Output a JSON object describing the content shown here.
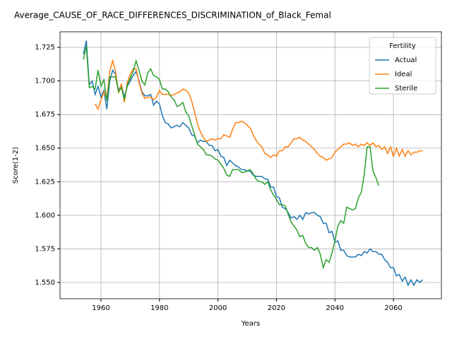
{
  "chart_data": {
    "type": "line",
    "title": "Average_CAUSE_OF_RACE_DIFFERENCES_DISCRIMINATION_of_Black_Femal",
    "x_label": "Years",
    "y_label": "Score(1-2)",
    "legend_title": "Fertility",
    "legend_position": "upper right",
    "grid": true,
    "xlim": [
      1946,
      2076.4
    ],
    "ylim": [
      1.5379,
      1.7366
    ],
    "xticks": [
      1960,
      1980,
      2000,
      2020,
      2040,
      2060
    ],
    "yticks": [
      {
        "value": 1.55,
        "label": "1.550"
      },
      {
        "value": 1.575,
        "label": "1.575"
      },
      {
        "value": 1.6,
        "label": "1.600"
      },
      {
        "value": 1.625,
        "label": "1.625"
      },
      {
        "value": 1.65,
        "label": "1.650"
      },
      {
        "value": 1.675,
        "label": "1.675"
      },
      {
        "value": 1.7,
        "label": "1.700"
      },
      {
        "value": 1.725,
        "label": "1.725"
      }
    ],
    "series": [
      {
        "name": "Actual",
        "color": "#1f77b4",
        "x": [
          1954,
          1955,
          1956,
          1957,
          1958,
          1959,
          1960,
          1961,
          1962,
          1963,
          1964,
          1965,
          1966,
          1967,
          1968,
          1969,
          1970,
          1971,
          1972,
          1973,
          1974,
          1975,
          1976,
          1977,
          1978,
          1979,
          1980,
          1981,
          1982,
          1983,
          1984,
          1985,
          1986,
          1987,
          1988,
          1989,
          1990,
          1991,
          1992,
          1993,
          1994,
          1995,
          1996,
          1997,
          1998,
          1999,
          2000,
          2001,
          2002,
          2003,
          2004,
          2005,
          2006,
          2007,
          2008,
          2009,
          2010,
          2011,
          2012,
          2013,
          2014,
          2015,
          2016,
          2017,
          2018,
          2019,
          2020,
          2021,
          2022,
          2023,
          2024,
          2025,
          2026,
          2027,
          2028,
          2029,
          2030,
          2031,
          2032,
          2033,
          2034,
          2035,
          2036,
          2037,
          2038,
          2039,
          2040,
          2041,
          2042,
          2043,
          2044,
          2045,
          2046,
          2047,
          2048,
          2049,
          2050,
          2051,
          2052,
          2053,
          2054,
          2055,
          2056,
          2057,
          2058,
          2059,
          2060,
          2061,
          2062,
          2063,
          2064,
          2065,
          2066,
          2067,
          2068,
          2069,
          2070
        ],
        "values": [
          1.72,
          1.73,
          1.697,
          1.7,
          1.69,
          1.696,
          1.688,
          1.693,
          1.679,
          1.7,
          1.708,
          1.705,
          1.693,
          1.697,
          1.688,
          1.696,
          1.7,
          1.704,
          1.707,
          1.7,
          1.692,
          1.689,
          1.689,
          1.69,
          1.682,
          1.685,
          1.683,
          1.674,
          1.669,
          1.668,
          1.665,
          1.666,
          1.667,
          1.666,
          1.669,
          1.667,
          1.665,
          1.66,
          1.659,
          1.654,
          1.656,
          1.655,
          1.655,
          1.652,
          1.652,
          1.648,
          1.649,
          1.644,
          1.643,
          1.637,
          1.641,
          1.639,
          1.637,
          1.636,
          1.634,
          1.634,
          1.633,
          1.633,
          1.63,
          1.629,
          1.629,
          1.629,
          1.627,
          1.627,
          1.621,
          1.621,
          1.614,
          1.613,
          1.606,
          1.605,
          1.602,
          1.598,
          1.599,
          1.597,
          1.6,
          1.597,
          1.602,
          1.601,
          1.602,
          1.602,
          1.6,
          1.599,
          1.594,
          1.594,
          1.587,
          1.588,
          1.58,
          1.581,
          1.574,
          1.574,
          1.57,
          1.569,
          1.569,
          1.569,
          1.571,
          1.57,
          1.573,
          1.572,
          1.575,
          1.573,
          1.573,
          1.571,
          1.571,
          1.567,
          1.565,
          1.561,
          1.561,
          1.555,
          1.556,
          1.551,
          1.554,
          1.548,
          1.552,
          1.548,
          1.552,
          1.55,
          1.552
        ]
      },
      {
        "name": "Ideal",
        "color": "#ff7f0e",
        "x": [
          1958,
          1959,
          1960,
          1961,
          1962,
          1963,
          1964,
          1965,
          1966,
          1967,
          1968,
          1969,
          1970,
          1971,
          1972,
          1973,
          1974,
          1975,
          1976,
          1977,
          1978,
          1979,
          1980,
          1981,
          1982,
          1983,
          1984,
          1985,
          1986,
          1987,
          1988,
          1989,
          1990,
          1991,
          1992,
          1993,
          1994,
          1995,
          1996,
          1997,
          1998,
          1999,
          2000,
          2001,
          2002,
          2003,
          2004,
          2005,
          2006,
          2007,
          2008,
          2009,
          2010,
          2011,
          2012,
          2013,
          2014,
          2015,
          2016,
          2017,
          2018,
          2019,
          2020,
          2021,
          2022,
          2023,
          2024,
          2025,
          2026,
          2027,
          2028,
          2029,
          2030,
          2031,
          2032,
          2033,
          2034,
          2035,
          2036,
          2037,
          2038,
          2039,
          2040,
          2041,
          2042,
          2043,
          2044,
          2045,
          2046,
          2047,
          2048,
          2049,
          2050,
          2051,
          2052,
          2053,
          2054,
          2055,
          2056,
          2057,
          2058,
          2059,
          2060,
          2061,
          2062,
          2063,
          2064,
          2065,
          2066,
          2067,
          2068,
          2069,
          2070
        ],
        "values": [
          1.683,
          1.679,
          1.686,
          1.692,
          1.687,
          1.707,
          1.715,
          1.707,
          1.691,
          1.698,
          1.684,
          1.699,
          1.705,
          1.709,
          1.709,
          1.699,
          1.691,
          1.687,
          1.688,
          1.688,
          1.686,
          1.688,
          1.693,
          1.69,
          1.69,
          1.69,
          1.689,
          1.69,
          1.691,
          1.692,
          1.694,
          1.693,
          1.691,
          1.685,
          1.677,
          1.668,
          1.662,
          1.658,
          1.655,
          1.656,
          1.657,
          1.656,
          1.657,
          1.657,
          1.66,
          1.659,
          1.658,
          1.664,
          1.669,
          1.669,
          1.67,
          1.669,
          1.667,
          1.665,
          1.66,
          1.656,
          1.653,
          1.651,
          1.646,
          1.645,
          1.643,
          1.645,
          1.644,
          1.648,
          1.648,
          1.651,
          1.651,
          1.654,
          1.657,
          1.657,
          1.658,
          1.656,
          1.655,
          1.653,
          1.651,
          1.649,
          1.646,
          1.644,
          1.643,
          1.641,
          1.642,
          1.643,
          1.647,
          1.649,
          1.651,
          1.653,
          1.653,
          1.654,
          1.652,
          1.653,
          1.651,
          1.653,
          1.652,
          1.654,
          1.652,
          1.654,
          1.651,
          1.652,
          1.649,
          1.651,
          1.646,
          1.651,
          1.644,
          1.65,
          1.644,
          1.649,
          1.644,
          1.648,
          1.645,
          1.647,
          1.647,
          1.648,
          1.648
        ]
      },
      {
        "name": "Sterile",
        "color": "#2ca02c",
        "x": [
          1954,
          1955,
          1956,
          1957,
          1958,
          1959,
          1960,
          1961,
          1962,
          1963,
          1964,
          1965,
          1966,
          1967,
          1968,
          1969,
          1970,
          1971,
          1972,
          1973,
          1974,
          1975,
          1976,
          1977,
          1978,
          1979,
          1980,
          1981,
          1982,
          1983,
          1984,
          1985,
          1986,
          1987,
          1988,
          1989,
          1990,
          1991,
          1992,
          1993,
          1994,
          1995,
          1996,
          1997,
          1998,
          1999,
          2000,
          2001,
          2002,
          2003,
          2004,
          2005,
          2006,
          2007,
          2008,
          2009,
          2010,
          2011,
          2012,
          2013,
          2014,
          2015,
          2016,
          2017,
          2018,
          2019,
          2020,
          2021,
          2022,
          2023,
          2024,
          2025,
          2026,
          2027,
          2028,
          2029,
          2030,
          2031,
          2032,
          2033,
          2034,
          2035,
          2036,
          2037,
          2038,
          2039,
          2040,
          2041,
          2042,
          2043,
          2044,
          2045,
          2046,
          2047,
          2048,
          2049,
          2050,
          2051,
          2052,
          2053,
          2054,
          2055
        ],
        "values": [
          1.716,
          1.726,
          1.695,
          1.696,
          1.694,
          1.708,
          1.696,
          1.701,
          1.685,
          1.703,
          1.703,
          1.703,
          1.692,
          1.695,
          1.686,
          1.697,
          1.702,
          1.707,
          1.715,
          1.708,
          1.7,
          1.697,
          1.706,
          1.709,
          1.704,
          1.703,
          1.701,
          1.694,
          1.694,
          1.692,
          1.688,
          1.686,
          1.681,
          1.682,
          1.684,
          1.677,
          1.674,
          1.667,
          1.66,
          1.653,
          1.651,
          1.649,
          1.645,
          1.645,
          1.644,
          1.642,
          1.641,
          1.638,
          1.635,
          1.63,
          1.629,
          1.634,
          1.634,
          1.634,
          1.632,
          1.632,
          1.633,
          1.634,
          1.631,
          1.627,
          1.625,
          1.625,
          1.623,
          1.625,
          1.619,
          1.615,
          1.612,
          1.608,
          1.608,
          1.607,
          1.601,
          1.595,
          1.592,
          1.589,
          1.584,
          1.585,
          1.579,
          1.576,
          1.576,
          1.574,
          1.576,
          1.571,
          1.561,
          1.567,
          1.565,
          1.572,
          1.581,
          1.592,
          1.596,
          1.594,
          1.606,
          1.605,
          1.604,
          1.605,
          1.613,
          1.617,
          1.63,
          1.651,
          1.651,
          1.633,
          1.628,
          1.622
        ]
      }
    ]
  }
}
